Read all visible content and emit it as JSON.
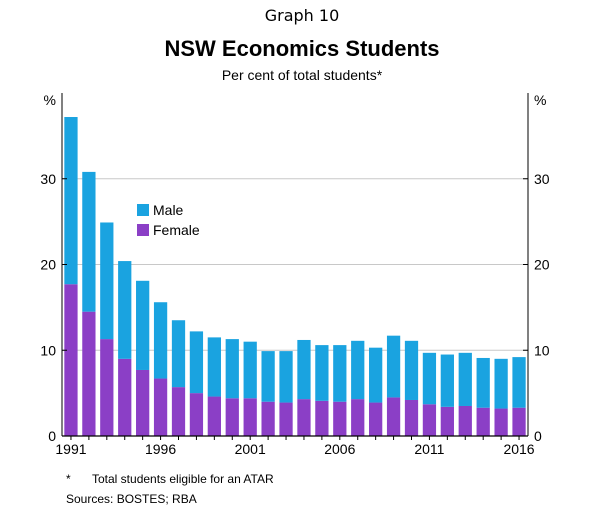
{
  "graph_number": "Graph 10",
  "footnote": {
    "marker": "*",
    "text": "Total students eligible for an ATAR"
  },
  "sources": "Sources:  BOSTES; RBA",
  "colors": {
    "male": "#1aa3e0",
    "female": "#8b3fc6",
    "grid": "#c8c8c8"
  },
  "chart_data": {
    "type": "bar",
    "stacked": true,
    "title": "NSW Economics Students",
    "subtitle": "Per cent of total students*",
    "ylabel_left": "%",
    "ylabel_right": "%",
    "ylim": [
      0,
      40
    ],
    "yticks": [
      0,
      10,
      20,
      30
    ],
    "grid": true,
    "legend_position": "top-left",
    "categories": [
      "1991",
      "1992",
      "1993",
      "1994",
      "1995",
      "1996",
      "1997",
      "1998",
      "1999",
      "2000",
      "2001",
      "2002",
      "2003",
      "2004",
      "2005",
      "2006",
      "2007",
      "2008",
      "2009",
      "2010",
      "2011",
      "2012",
      "2013",
      "2014",
      "2015",
      "2016"
    ],
    "xtick_labels": [
      "1991",
      "1996",
      "2001",
      "2006",
      "2011",
      "2016"
    ],
    "series": [
      {
        "name": "Female",
        "color": "#8b3fc6",
        "values": [
          17.7,
          14.5,
          11.3,
          9.0,
          7.7,
          6.7,
          5.7,
          5.0,
          4.6,
          4.4,
          4.4,
          4.0,
          3.9,
          4.3,
          4.1,
          4.0,
          4.3,
          3.9,
          4.5,
          4.2,
          3.7,
          3.4,
          3.5,
          3.3,
          3.2,
          3.3
        ]
      },
      {
        "name": "Male",
        "color": "#1aa3e0",
        "values": [
          19.5,
          16.3,
          13.6,
          11.4,
          10.4,
          8.9,
          7.8,
          7.2,
          6.9,
          6.9,
          6.6,
          5.9,
          6.0,
          6.9,
          6.5,
          6.6,
          6.8,
          6.4,
          7.2,
          6.9,
          6.0,
          6.1,
          6.2,
          5.8,
          5.8,
          5.9
        ]
      }
    ]
  }
}
